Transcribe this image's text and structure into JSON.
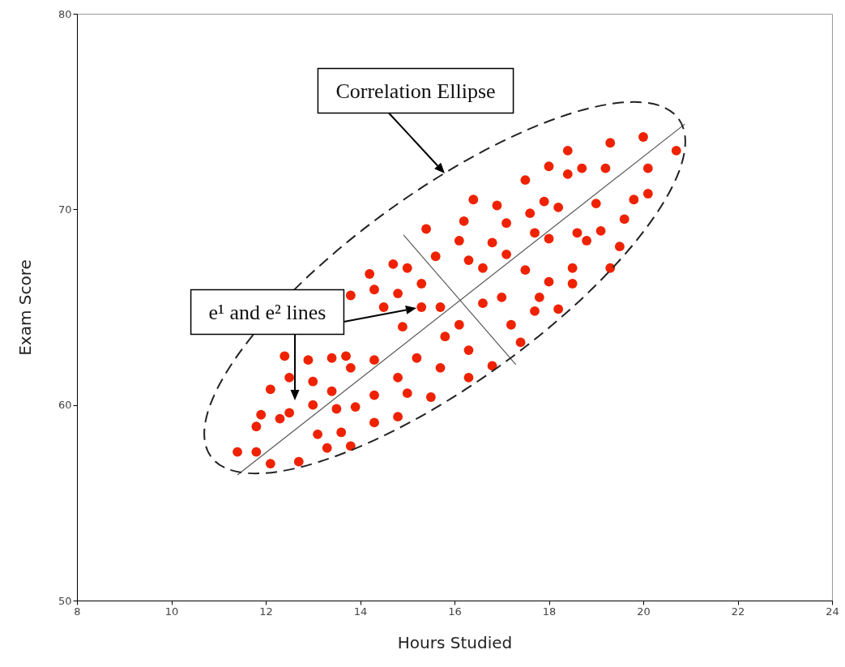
{
  "chart_data": {
    "type": "scatter",
    "xlabel": "Hours Studied",
    "ylabel": "Exam Score",
    "xlim": [
      8,
      24
    ],
    "xticks": [
      8,
      10,
      12,
      14,
      16,
      18,
      20,
      22,
      24
    ],
    "ylim": [
      50,
      80
    ],
    "yticks": [
      50,
      60,
      70,
      80
    ],
    "grid": false,
    "annotations": [
      "Correlation Ellipse",
      "e¹ and e² lines"
    ],
    "series": [
      {
        "marker": "circle",
        "color": "#ee2200",
        "x": [
          11.4,
          11.8,
          12.1,
          12.7,
          11.8,
          11.9,
          12.3,
          12.5,
          12.1,
          12.5,
          12.4,
          12.9,
          13.0,
          13.0,
          13.1,
          13.3,
          13.6,
          13.8,
          13.5,
          13.9,
          13.4,
          13.4,
          13.7,
          13.8,
          14.3,
          14.3,
          14.3,
          14.8,
          15.0,
          14.8,
          15.2,
          14.9,
          14.7,
          15.0,
          14.2,
          14.3,
          14.8,
          13.8,
          14.5,
          16.4,
          16.9,
          17.9,
          18.2,
          17.6,
          16.2,
          17.1,
          15.4,
          16.1,
          16.8,
          17.7,
          18.0,
          17.1,
          15.6,
          16.3,
          16.6,
          17.5,
          18.0,
          15.3,
          17.8,
          17.0,
          16.6,
          15.3,
          15.7,
          17.7,
          18.2,
          16.1,
          17.2,
          15.8,
          17.4,
          16.3,
          15.7,
          16.8,
          16.3,
          15.5,
          20.0,
          19.3,
          20.7,
          18.4,
          18.0,
          18.7,
          19.2,
          18.4,
          20.1,
          17.5,
          20.1,
          19.8,
          19.0,
          19.6,
          18.6,
          18.8,
          19.1,
          19.5,
          18.5,
          19.3,
          18.5
        ],
        "values": [
          57.6,
          57.6,
          57.0,
          57.1,
          58.9,
          59.5,
          59.3,
          59.6,
          60.8,
          61.4,
          62.5,
          62.3,
          61.2,
          60.0,
          58.5,
          57.8,
          58.6,
          57.9,
          59.8,
          59.9,
          60.7,
          62.4,
          62.5,
          61.9,
          62.3,
          60.5,
          59.1,
          59.4,
          60.6,
          61.4,
          62.4,
          64.0,
          67.2,
          67.0,
          66.7,
          65.9,
          65.7,
          65.6,
          65.0,
          70.5,
          70.2,
          70.4,
          70.1,
          69.8,
          69.4,
          69.3,
          69.0,
          68.4,
          68.3,
          68.8,
          68.5,
          67.7,
          67.6,
          67.4,
          67.0,
          66.9,
          66.3,
          66.2,
          65.5,
          65.5,
          65.2,
          65.0,
          65.0,
          64.8,
          64.9,
          64.1,
          64.1,
          63.5,
          63.2,
          62.8,
          61.9,
          62.0,
          61.4,
          60.4,
          73.7,
          73.4,
          73.0,
          73.0,
          72.2,
          72.1,
          72.1,
          71.8,
          72.1,
          71.5,
          70.8,
          70.5,
          70.3,
          69.5,
          68.8,
          68.4,
          68.9,
          68.1,
          67.0,
          67.0,
          66.2
        ]
      },
      {
        "type": "line",
        "line_style": "solid",
        "color": "#555555",
        "x": [
          11.4,
          20.88
        ],
        "values": [
          56.42,
          74.36
        ]
      },
      {
        "type": "line",
        "line_style": "solid",
        "color": "#555555",
        "x": [
          14.92,
          17.3
        ],
        "values": [
          68.69,
          62.06
        ]
      }
    ]
  }
}
